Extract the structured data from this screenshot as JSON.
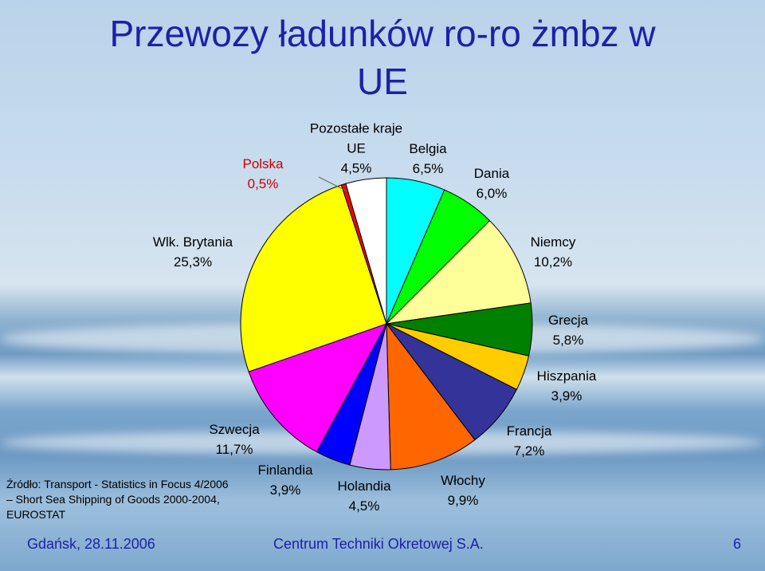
{
  "chart_data": {
    "type": "pie",
    "title": "Przewozy ładunków ro-ro żmbz w UE",
    "categories": [
      "Belgia",
      "Dania",
      "Niemcy",
      "Grecja",
      "Hiszpania",
      "Francja",
      "Włochy",
      "Holandia",
      "Finlandia",
      "Szwecja",
      "Wlk. Brytania",
      "Polska",
      "Pozostałe kraje UE"
    ],
    "values": [
      6.5,
      6.0,
      10.2,
      5.8,
      3.9,
      7.2,
      9.9,
      4.5,
      3.9,
      11.7,
      25.3,
      0.5,
      4.5
    ],
    "value_labels": [
      "6,5%",
      "6,0%",
      "10,2%",
      "5,8%",
      "3,9%",
      "7,2%",
      "9,9%",
      "4,5%",
      "3,9%",
      "11,7%",
      "25,3%",
      "0,5%",
      "4,5%"
    ],
    "colors": [
      "#00ffff",
      "#00ff00",
      "#ffff99",
      "#008000",
      "#ffcc00",
      "#333399",
      "#ff6600",
      "#cc99ff",
      "#0000ff",
      "#ff00ff",
      "#ffff00",
      "#ff0000",
      "#ffffff"
    ],
    "source": "Źródło: Transport - Statistics in Focus 4/2006 – Short Sea Shipping of Goods 2000-2004, EUROSTAT"
  },
  "footer": {
    "left": "Gdańsk, 28.11.2006",
    "center": "Centrum Techniki Okretowej S.A.",
    "page": "6"
  }
}
